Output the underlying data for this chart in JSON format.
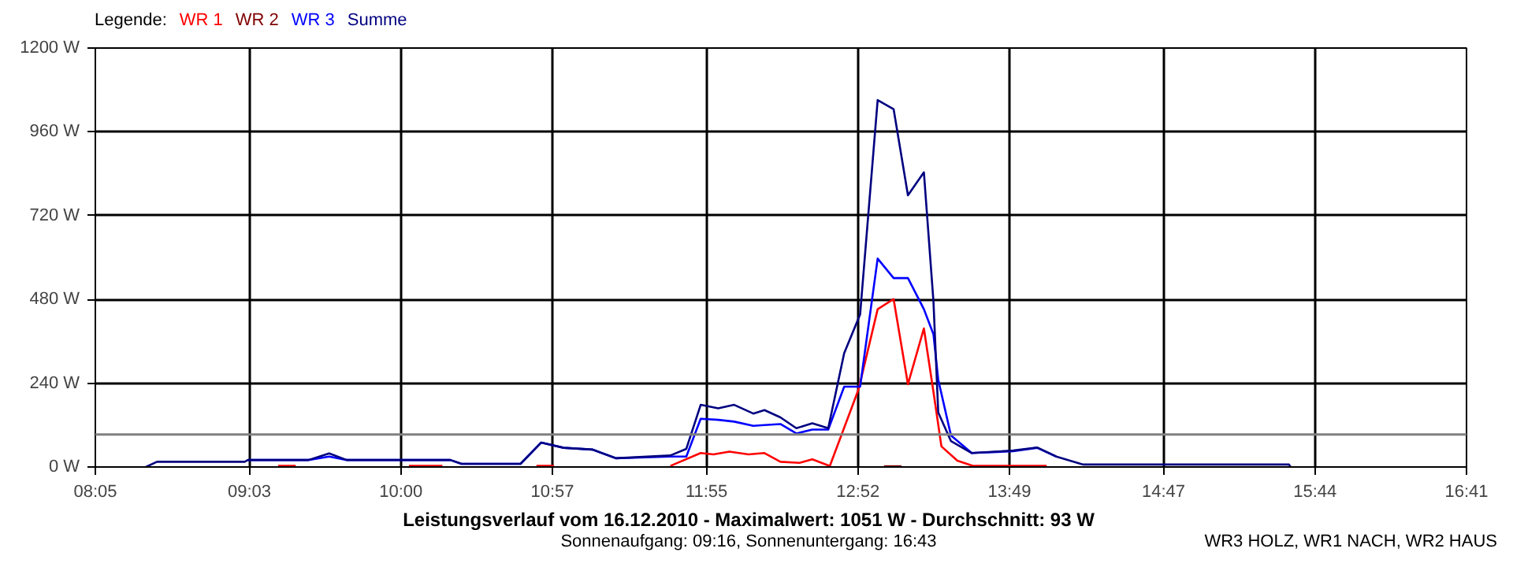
{
  "chart_data": {
    "type": "line",
    "title": "Leistungsverlauf vom 16.12.2010 - Maximalwert: 1051 W - Durchschnitt: 93 W",
    "subtitle": "Sonnenaufgang: 09:16, Sonnenuntergang: 16:43",
    "annotations": [
      "WR3 HOLZ, WR1 NACH, WR2 HAUS"
    ],
    "legend_title": "Legende:",
    "series": [
      {
        "name": "WR 1",
        "color": "#ff0000",
        "x": [
          9.23,
          9.34,
          9.8,
          10.05,
          10.26,
          10.5,
          10.85,
          10.96,
          11.3,
          11.69,
          11.88,
          11.96,
          12.06,
          12.18,
          12.28,
          12.38,
          12.5,
          12.58,
          12.69,
          12.87,
          12.99,
          13.09,
          13.18,
          13.28,
          13.34,
          13.39,
          13.49,
          13.59,
          14.05
        ],
        "values": [
          3,
          3,
          null,
          3,
          3,
          null,
          3,
          3,
          null,
          3,
          40,
          36,
          44,
          36,
          40,
          15,
          12,
          22,
          3,
          222,
          452,
          481,
          237,
          397,
          215,
          59,
          18,
          3,
          3
        ]
      },
      {
        "name": "WR 2",
        "color": "#800000",
        "x": [
          13.03,
          13.14
        ],
        "values": [
          2,
          2
        ]
      },
      {
        "name": "WR 3",
        "color": "#0000ff",
        "x": [
          9.04,
          9.42,
          9.55,
          9.66,
          10.31,
          10.38,
          10.75,
          10.88,
          11.02,
          11.2,
          11.35,
          11.69,
          11.79,
          11.88,
          11.99,
          12.09,
          12.21,
          12.28,
          12.38,
          12.48,
          12.58,
          12.68,
          12.78,
          12.88,
          12.99,
          13.09,
          13.18,
          13.28,
          13.34,
          13.37,
          13.45,
          13.58,
          13.84,
          13.99,
          14.11
        ],
        "values": [
          20,
          20,
          30,
          20,
          20,
          9,
          9,
          70,
          55,
          50,
          25,
          30,
          30,
          138,
          135,
          130,
          118,
          120,
          123,
          96,
          107,
          107,
          230,
          230,
          597,
          541,
          541,
          452,
          380,
          250,
          90,
          40,
          45,
          55,
          30
        ]
      },
      {
        "name": "Summe",
        "color": "#000080",
        "x": [
          8.4,
          8.47,
          9.02,
          9.04,
          9.42,
          9.55,
          9.66,
          10.31,
          10.38,
          10.75,
          10.88,
          11.02,
          11.2,
          11.35,
          11.69,
          11.79,
          11.88,
          11.99,
          12.09,
          12.21,
          12.28,
          12.38,
          12.48,
          12.58,
          12.68,
          12.78,
          12.88,
          12.99,
          13.09,
          13.18,
          13.28,
          13.34,
          13.37,
          13.45,
          13.58,
          13.84,
          13.99,
          14.11,
          14.28,
          15.57,
          15.58
        ],
        "values": [
          0,
          15,
          15,
          20,
          20,
          39,
          20,
          20,
          9,
          9,
          70,
          55,
          50,
          25,
          33,
          52,
          178,
          168,
          178,
          153,
          163,
          142,
          111,
          125,
          111,
          326,
          437,
          1051,
          1025,
          778,
          844,
          474,
          156,
          74,
          40,
          47,
          56,
          30,
          7,
          7,
          0
        ]
      }
    ],
    "xlim": [
      8.0833,
      16.6833
    ],
    "xticks": [
      {
        "value": 8.0833,
        "label": "08:05"
      },
      {
        "value": 9.05,
        "label": "09:03"
      },
      {
        "value": 10.0,
        "label": "10:00"
      },
      {
        "value": 10.95,
        "label": "10:57"
      },
      {
        "value": 11.9167,
        "label": "11:55"
      },
      {
        "value": 12.8667,
        "label": "12:52"
      },
      {
        "value": 13.8167,
        "label": "13:49"
      },
      {
        "value": 14.7833,
        "label": "14:47"
      },
      {
        "value": 15.7333,
        "label": "15:44"
      },
      {
        "value": 16.6833,
        "label": "16:41"
      }
    ],
    "ylim": [
      0,
      1200
    ],
    "yticks": [
      {
        "value": 0,
        "label": "0 W"
      },
      {
        "value": 240,
        "label": "240 W"
      },
      {
        "value": 480,
        "label": "480 W"
      },
      {
        "value": 720,
        "label": "720 W"
      },
      {
        "value": 960,
        "label": "960 W"
      },
      {
        "value": 1200,
        "label": "1200 W"
      }
    ],
    "ref_lines": [
      {
        "axis": "y",
        "value": 93,
        "color": "#808080"
      }
    ],
    "grid": true,
    "legend": "top left",
    "marker": "none",
    "line_style": "solid"
  }
}
